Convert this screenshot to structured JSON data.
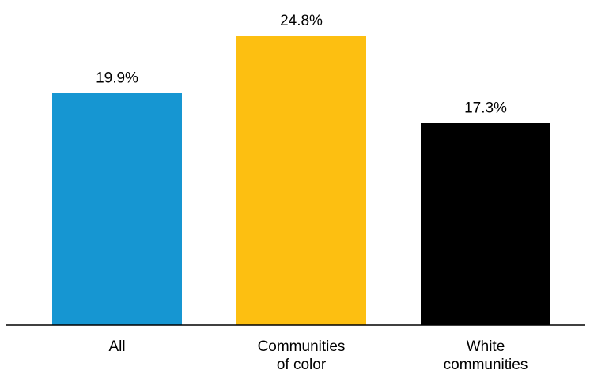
{
  "chart_data": {
    "type": "bar",
    "title": "",
    "xlabel": "",
    "ylabel": "",
    "categories": [
      [
        "All"
      ],
      [
        "Communities",
        "of color"
      ],
      [
        "White",
        "communities"
      ]
    ],
    "values": [
      19.9,
      24.8,
      17.3
    ],
    "value_labels": [
      "19.9%",
      "24.8%",
      "17.3%"
    ],
    "colors": [
      "#1696d2",
      "#fdbf11",
      "#000000"
    ],
    "ylim": [
      0,
      26
    ],
    "grid": false,
    "legend": "none"
  }
}
